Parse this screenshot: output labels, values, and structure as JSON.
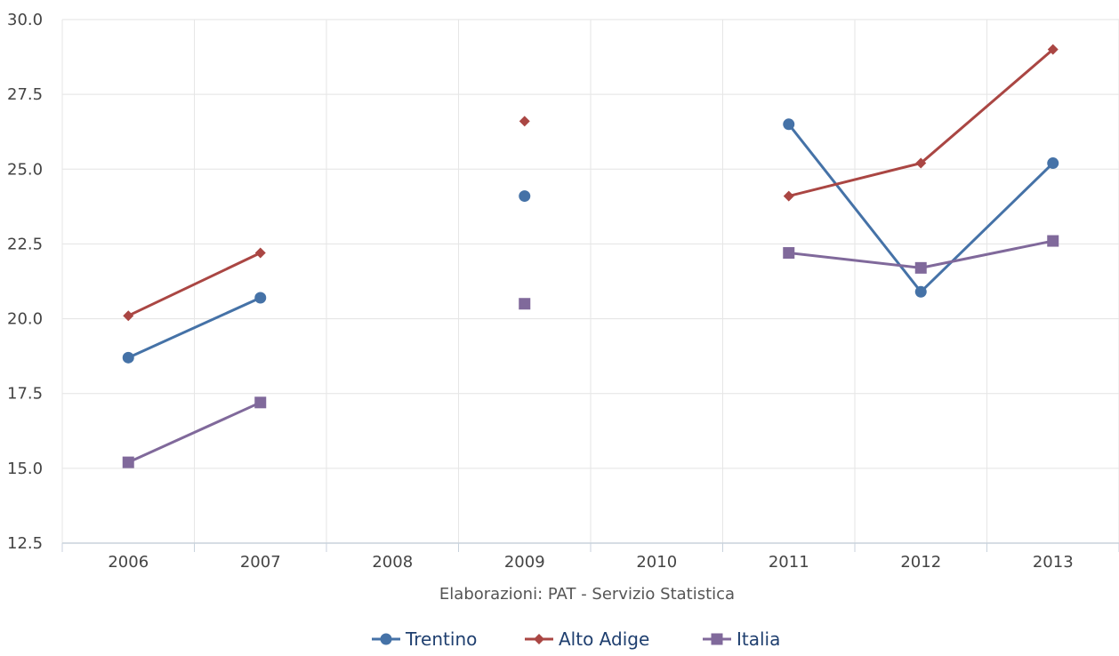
{
  "chart_data": {
    "type": "line",
    "categories": [
      "2006",
      "2007",
      "2008",
      "2009",
      "2010",
      "2011",
      "2012",
      "2013"
    ],
    "ylim": [
      12.5,
      30.0
    ],
    "yticks": [
      "12.5",
      "15.0",
      "17.5",
      "20.0",
      "22.5",
      "25.0",
      "27.5",
      "30.0"
    ],
    "grid": true,
    "legend_position": "bottom",
    "credit": "Elaborazioni: PAT - Servizio Statistica",
    "series": [
      {
        "name": "Trentino",
        "color": "#4572a7",
        "marker": "circle",
        "values": [
          18.7,
          20.7,
          null,
          24.1,
          null,
          26.5,
          20.9,
          25.2
        ]
      },
      {
        "name": "Alto Adige",
        "color": "#aa4643",
        "marker": "diamond",
        "values": [
          20.1,
          22.2,
          null,
          26.6,
          null,
          24.1,
          25.2,
          29.0
        ]
      },
      {
        "name": "Italia",
        "color": "#80699b",
        "marker": "square",
        "values": [
          15.2,
          17.2,
          null,
          20.5,
          null,
          22.2,
          21.7,
          22.6
        ]
      }
    ]
  }
}
